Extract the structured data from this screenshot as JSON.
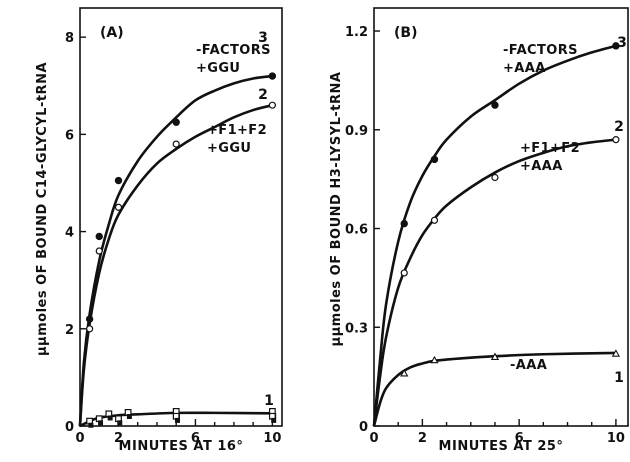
{
  "chart_data": [
    {
      "type": "line",
      "panel_label": "(A)",
      "xlabel": "MINUTES AT 16°",
      "ylabel": "μμmoles OF BOUND C14-GLYCYL-tRNA",
      "xlim": [
        0,
        10.5
      ],
      "ylim": [
        0,
        8.6
      ],
      "xticks": [
        0,
        2,
        6,
        10
      ],
      "yticks": [
        0,
        2,
        4,
        6,
        8
      ],
      "series": [
        {
          "curve_number": "3",
          "annotation": [
            "-FACTORS",
            "+GGU"
          ],
          "marker": "filled-circle",
          "points": [
            [
              0.5,
              2.2
            ],
            [
              1.0,
              3.9
            ],
            [
              2.0,
              5.05
            ],
            [
              5.0,
              6.25
            ],
            [
              10.0,
              7.2
            ]
          ],
          "curve": [
            [
              0,
              0
            ],
            [
              0.2,
              1.3
            ],
            [
              0.5,
              2.3
            ],
            [
              1.0,
              3.4
            ],
            [
              1.5,
              4.15
            ],
            [
              2.0,
              4.75
            ],
            [
              3.0,
              5.45
            ],
            [
              4.0,
              5.95
            ],
            [
              5.0,
              6.35
            ],
            [
              6.0,
              6.7
            ],
            [
              7.0,
              6.9
            ],
            [
              8.0,
              7.05
            ],
            [
              9.0,
              7.15
            ],
            [
              10.0,
              7.2
            ]
          ]
        },
        {
          "curve_number": "2",
          "annotation": [
            "+F1+F2",
            "+GGU"
          ],
          "marker": "open-circle",
          "points": [
            [
              0.5,
              2.0
            ],
            [
              1.0,
              3.6
            ],
            [
              2.0,
              4.5
            ],
            [
              5.0,
              5.8
            ],
            [
              10.0,
              6.6
            ]
          ],
          "curve": [
            [
              0,
              0
            ],
            [
              0.2,
              1.15
            ],
            [
              0.5,
              2.1
            ],
            [
              1.0,
              3.15
            ],
            [
              1.5,
              3.85
            ],
            [
              2.0,
              4.35
            ],
            [
              3.0,
              4.95
            ],
            [
              4.0,
              5.4
            ],
            [
              5.0,
              5.7
            ],
            [
              6.0,
              5.95
            ],
            [
              7.0,
              6.15
            ],
            [
              8.0,
              6.35
            ],
            [
              9.0,
              6.5
            ],
            [
              10.0,
              6.6
            ]
          ]
        },
        {
          "curve_number": "1",
          "annotation": [],
          "marker": "squares",
          "points": [
            [
              0.5,
              0.1
            ],
            [
              1.0,
              0.15
            ],
            [
              1.5,
              0.25
            ],
            [
              2.0,
              0.15
            ],
            [
              2.5,
              0.28
            ],
            [
              5.0,
              0.3
            ],
            [
              5.0,
              0.2
            ],
            [
              10.0,
              0.3
            ],
            [
              10.0,
              0.2
            ]
          ],
          "curve": [
            [
              0,
              0
            ],
            [
              0.5,
              0.1
            ],
            [
              1.0,
              0.17
            ],
            [
              2.0,
              0.22
            ],
            [
              3.0,
              0.24
            ],
            [
              5.0,
              0.27
            ],
            [
              7.0,
              0.27
            ],
            [
              10.0,
              0.26
            ]
          ]
        }
      ]
    },
    {
      "type": "line",
      "panel_label": "(B)",
      "xlabel": "MINUTES AT 25°",
      "ylabel": "μμmoles OF BOUND H3-LYSYL-tRNA",
      "xlim": [
        0,
        10.5
      ],
      "ylim": [
        0,
        1.27
      ],
      "xticks": [
        0,
        2,
        6,
        10
      ],
      "yticks": [
        0,
        0.3,
        0.6,
        0.9,
        1.2
      ],
      "series": [
        {
          "curve_number": "3",
          "annotation": [
            "-FACTORS",
            "+AAA"
          ],
          "marker": "filled-circle",
          "points": [
            [
              1.25,
              0.615
            ],
            [
              2.5,
              0.81
            ],
            [
              5.0,
              0.975
            ],
            [
              10.0,
              1.155
            ]
          ],
          "curve": [
            [
              0,
              0
            ],
            [
              0.25,
              0.2
            ],
            [
              0.5,
              0.37
            ],
            [
              1.0,
              0.56
            ],
            [
              1.5,
              0.68
            ],
            [
              2.0,
              0.76
            ],
            [
              2.5,
              0.82
            ],
            [
              3.0,
              0.87
            ],
            [
              4.0,
              0.94
            ],
            [
              5.0,
              0.99
            ],
            [
              6.0,
              1.04
            ],
            [
              7.0,
              1.08
            ],
            [
              8.0,
              1.11
            ],
            [
              9.0,
              1.135
            ],
            [
              10.0,
              1.155
            ]
          ]
        },
        {
          "curve_number": "2",
          "annotation": [
            "+F1+F2",
            "+AAA"
          ],
          "marker": "open-circle",
          "points": [
            [
              1.25,
              0.465
            ],
            [
              2.5,
              0.625
            ],
            [
              5.0,
              0.755
            ],
            [
              10.0,
              0.87
            ]
          ],
          "curve": [
            [
              0,
              0
            ],
            [
              0.25,
              0.15
            ],
            [
              0.5,
              0.27
            ],
            [
              1.0,
              0.42
            ],
            [
              1.5,
              0.51
            ],
            [
              2.0,
              0.58
            ],
            [
              2.5,
              0.63
            ],
            [
              3.0,
              0.67
            ],
            [
              4.0,
              0.725
            ],
            [
              5.0,
              0.77
            ],
            [
              6.0,
              0.805
            ],
            [
              7.0,
              0.83
            ],
            [
              8.0,
              0.85
            ],
            [
              9.0,
              0.862
            ],
            [
              10.0,
              0.87
            ]
          ]
        },
        {
          "curve_number": "1",
          "annotation": [
            "-AAA"
          ],
          "marker": "open-triangle",
          "points": [
            [
              1.25,
              0.16
            ],
            [
              2.5,
              0.2
            ],
            [
              5.0,
              0.21
            ],
            [
              10.0,
              0.22
            ]
          ],
          "curve": [
            [
              0,
              0
            ],
            [
              0.25,
              0.07
            ],
            [
              0.5,
              0.115
            ],
            [
              1.0,
              0.155
            ],
            [
              1.5,
              0.178
            ],
            [
              2.0,
              0.19
            ],
            [
              2.5,
              0.198
            ],
            [
              3.5,
              0.205
            ],
            [
              5.0,
              0.212
            ],
            [
              7.0,
              0.218
            ],
            [
              10.0,
              0.222
            ]
          ]
        }
      ]
    }
  ]
}
